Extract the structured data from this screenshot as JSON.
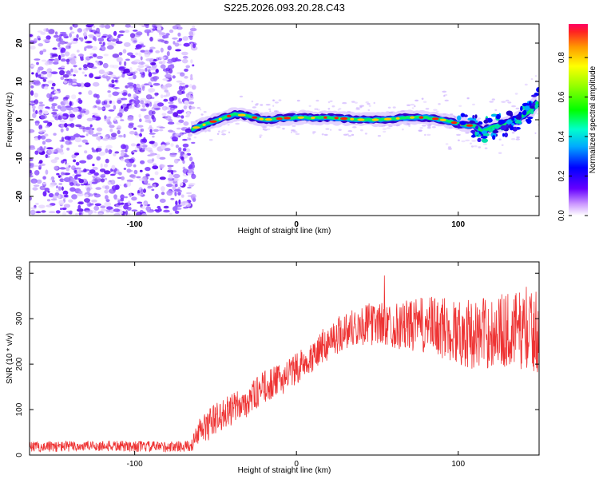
{
  "title": "S225.2026.093.20.28.C43",
  "colorbar": {
    "label": "Normalized spectral amplitude",
    "range": [
      0,
      0.97
    ],
    "ticks": [
      0.0,
      0.2,
      0.4,
      0.6,
      0.8
    ],
    "tick_labels": [
      "0.0",
      "0.2",
      "0.4",
      "0.6",
      "0.8"
    ],
    "colors": [
      "#ffffff",
      "#9966ff",
      "#5500ff",
      "#0000ff",
      "#00ccff",
      "#00ff66",
      "#66ff00",
      "#ffee00",
      "#ff8800",
      "#ff0000"
    ]
  },
  "chart_data": [
    {
      "type": "heatmap",
      "name": "spectrogram",
      "title": "S225.2026.093.20.28.C43",
      "xlabel": "Height of straight line (km)",
      "ylabel": "Frequency (Hz)",
      "xlim": [
        -165,
        150
      ],
      "ylim": [
        -25,
        25
      ],
      "x_ticks": [
        -100,
        0,
        100
      ],
      "x_tick_labels": [
        "-100",
        "0",
        "100"
      ],
      "y_ticks": [
        -20,
        -10,
        0,
        10,
        20
      ],
      "y_tick_labels": [
        "-20",
        "-10",
        "0",
        "10",
        "20"
      ],
      "noise_region_x": [
        -165,
        -65
      ],
      "ridge": {
        "x": [
          -65,
          -55,
          -45,
          -38,
          -30,
          -20,
          -10,
          0,
          10,
          20,
          30,
          40,
          50,
          60,
          70,
          80,
          90,
          100,
          105,
          110,
          115,
          120,
          125,
          130,
          135,
          140,
          145,
          150
        ],
        "freq": [
          -2.5,
          -1.0,
          0.5,
          1.5,
          1.0,
          0.0,
          0.3,
          0.6,
          0.5,
          0.6,
          0.3,
          0.0,
          0.0,
          0.3,
          0.6,
          0.6,
          0.0,
          -1.0,
          -1.5,
          -1.5,
          -3.0,
          -2.0,
          -1.5,
          -1.0,
          0.0,
          1.0,
          2.5,
          5.0
        ]
      }
    },
    {
      "type": "line",
      "name": "snr",
      "xlabel": "Height of straight line (km)",
      "ylabel": "SNR (10 * v/v)",
      "xlim": [
        -165,
        150
      ],
      "ylim": [
        0,
        425
      ],
      "x_ticks": [
        -100,
        0,
        100
      ],
      "x_tick_labels": [
        "-100",
        "0",
        "100"
      ],
      "y_ticks": [
        0,
        100,
        200,
        300,
        400
      ],
      "y_tick_labels": [
        "0",
        "100",
        "200",
        "300",
        "400"
      ],
      "color": "#ee3333",
      "trend": {
        "x": [
          -165,
          -120,
          -80,
          -65,
          -60,
          -50,
          -40,
          -30,
          -20,
          -10,
          0,
          10,
          20,
          30,
          40,
          50,
          60,
          70,
          80,
          90,
          100,
          110,
          120,
          130,
          140,
          150
        ],
        "y": [
          18,
          20,
          18,
          20,
          50,
          80,
          100,
          120,
          150,
          165,
          190,
          220,
          250,
          275,
          285,
          290,
          285,
          285,
          285,
          280,
          270,
          265,
          270,
          275,
          275,
          270
        ]
      },
      "noise_amplitude": {
        "x": [
          -165,
          -65,
          -60,
          0,
          60,
          90,
          150
        ],
        "y": [
          12,
          12,
          35,
          35,
          50,
          70,
          90
        ]
      }
    }
  ]
}
